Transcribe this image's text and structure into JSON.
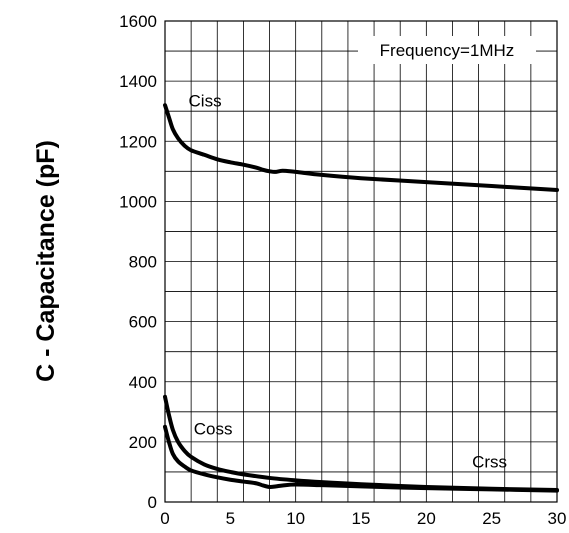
{
  "chart_data": {
    "type": "line",
    "title": "",
    "xlabel": "",
    "ylabel": "C - Capacitance (pF)",
    "xlim": [
      0,
      30
    ],
    "ylim": [
      0,
      1600
    ],
    "x_ticks": [
      0,
      5,
      10,
      15,
      20,
      25,
      30
    ],
    "y_ticks": [
      0,
      200,
      400,
      600,
      800,
      1000,
      1200,
      1400,
      1600
    ],
    "grid": true,
    "annotation": "Frequency=1MHz",
    "series": [
      {
        "name": "Ciss",
        "x": [
          0,
          0.3,
          0.6,
          1,
          1.5,
          2,
          3,
          4,
          5,
          6,
          7,
          7.5,
          8,
          8.5,
          9,
          10,
          12,
          15,
          20,
          25,
          30
        ],
        "y": [
          1320,
          1280,
          1240,
          1210,
          1185,
          1170,
          1155,
          1140,
          1130,
          1122,
          1112,
          1105,
          1100,
          1098,
          1102,
          1098,
          1088,
          1077,
          1064,
          1051,
          1038
        ]
      },
      {
        "name": "Coss",
        "x": [
          0,
          0.3,
          0.6,
          1,
          1.5,
          2,
          3,
          4,
          5,
          6,
          8,
          10,
          12,
          15,
          20,
          25,
          30
        ],
        "y": [
          350,
          290,
          240,
          200,
          170,
          150,
          125,
          110,
          100,
          92,
          80,
          72,
          66,
          59,
          50,
          44,
          40
        ]
      },
      {
        "name": "Crss",
        "x": [
          0,
          0.3,
          0.6,
          1,
          1.5,
          2,
          3,
          4,
          5,
          6,
          7,
          7.5,
          8,
          8.5,
          9,
          10,
          12,
          15,
          20,
          25,
          30
        ],
        "y": [
          250,
          200,
          160,
          135,
          118,
          105,
          92,
          82,
          74,
          68,
          62,
          55,
          50,
          52,
          55,
          58,
          56,
          52,
          46,
          42,
          38
        ]
      }
    ],
    "series_label_positions": [
      {
        "name": "Ciss",
        "x": 1.8,
        "y": 1315
      },
      {
        "name": "Coss",
        "x": 2.2,
        "y": 225
      },
      {
        "name": "Crss",
        "x": 23.5,
        "y": 115
      }
    ]
  }
}
